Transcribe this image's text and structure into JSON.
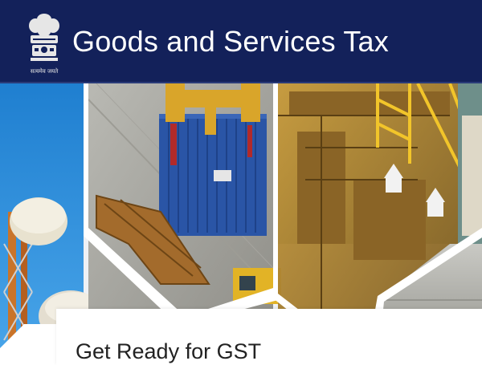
{
  "header": {
    "title": "Goods and Services Tax",
    "emblem_icon": "state-emblem-icon",
    "emblem_motto": "सत्यमेव जयते",
    "background_color": "#13215a"
  },
  "hero": {
    "panels": [
      {
        "name": "telecom-tower-panel",
        "icon": "satellite-tower-icon"
      },
      {
        "name": "container-crane-panel",
        "icon": "shipping-container-icon"
      },
      {
        "name": "port-crane-panel",
        "icon": "port-crane-icon"
      },
      {
        "name": "warehouse-panel",
        "icon": "warehouse-icon"
      }
    ]
  },
  "announcement": {
    "title": "Get Ready for GST"
  }
}
